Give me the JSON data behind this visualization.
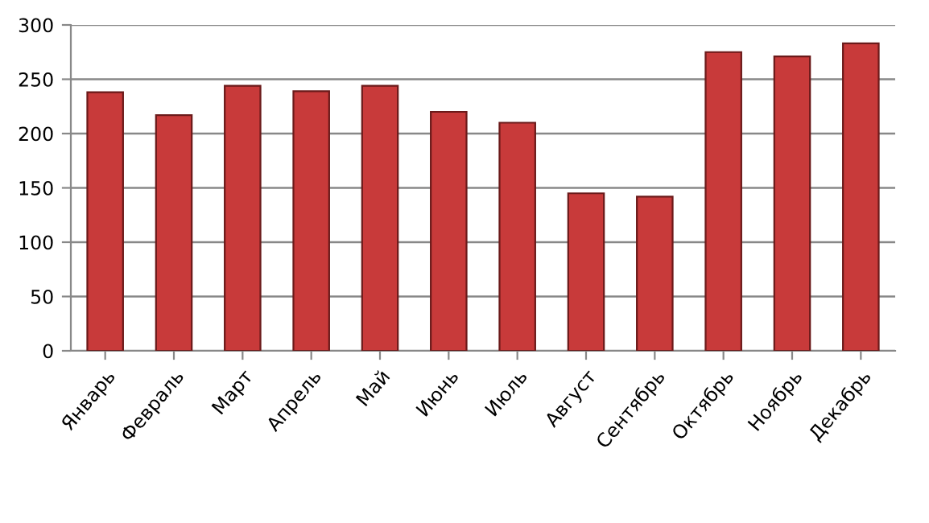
{
  "chart_data": {
    "type": "bar",
    "categories": [
      "Январь",
      "Февраль",
      "Март",
      "Апрель",
      "Май",
      "Июнь",
      "Июль",
      "Август",
      "Сентябрь",
      "Октябрь",
      "Ноябрь",
      "Декабрь"
    ],
    "values": [
      238,
      217,
      244,
      239,
      244,
      220,
      210,
      145,
      142,
      275,
      271,
      283
    ],
    "color": "#c83a3a",
    "ylim": [
      0,
      300
    ],
    "yticks": [
      0,
      50,
      100,
      150,
      200,
      250,
      300
    ],
    "grid": "y"
  }
}
